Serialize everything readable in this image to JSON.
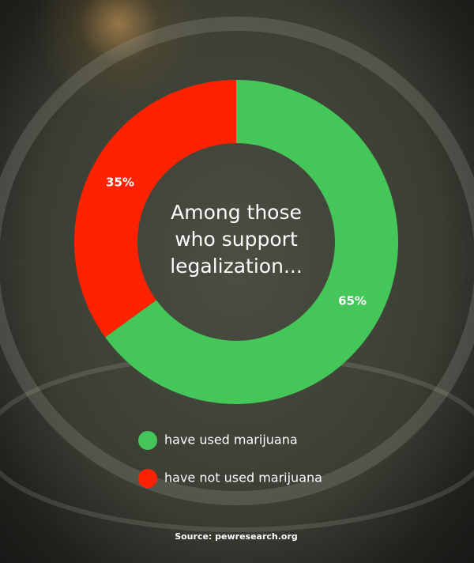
{
  "chart_data": {
    "type": "donut",
    "center_text": [
      "Among those",
      "who support",
      "legalization..."
    ],
    "categories": [
      "have used marijuana",
      "have not used marijuana"
    ],
    "values": [
      65,
      35
    ],
    "value_labels": [
      "65%",
      "35%"
    ],
    "colors": [
      "#44c659",
      "#ff2200"
    ],
    "source": "Source: pewresearch.org"
  }
}
